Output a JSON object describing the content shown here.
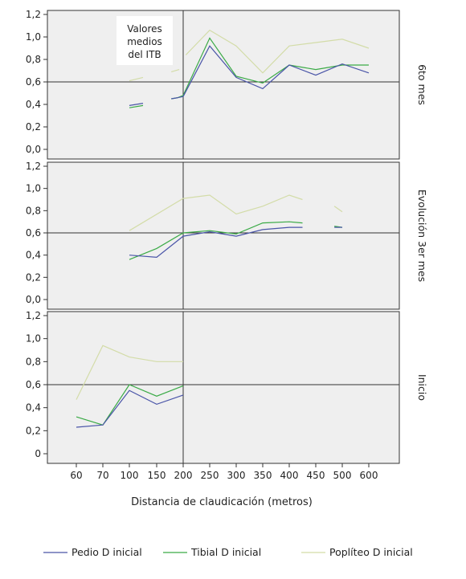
{
  "chart_data": {
    "type": "line",
    "xlabel": "Distancia de claudicación (metros)",
    "x_categories": [
      "60",
      "70",
      "100",
      "150",
      "200",
      "250",
      "300",
      "350",
      "400",
      "450",
      "500",
      "600"
    ],
    "y_ticks": [
      "1,2",
      "1,0",
      "0,8",
      "0,6",
      "0,4",
      "0,2",
      "0,0"
    ],
    "y_ticks_bottom": [
      "1,2",
      "1,0",
      "0,8",
      "0,6",
      "0,4",
      "0,2",
      "0"
    ],
    "ylim": [
      0,
      1.2
    ],
    "reference_line_y": 0.6,
    "reference_line_x": "200",
    "annotation": [
      "Valores",
      "medios",
      "del ITB"
    ],
    "legend_position": "bottom",
    "series_legend": [
      {
        "name": "Pedio D inicial",
        "color": "#4a55a8"
      },
      {
        "name": "Tibial D inicial",
        "color": "#3aaa46"
      },
      {
        "name": "Poplíteo D inicial",
        "color": "#d3dca8"
      }
    ],
    "panels": [
      {
        "label": "6to mes",
        "series": [
          {
            "name": "Pedio D inicial",
            "segments": [
              [
                [
                  2,
                  0.39
                ],
                [
                  2.5,
                  0.41
                ]
              ],
              [
                [
                  3.55,
                  0.45
                ],
                [
                  3.8,
                  0.46
                ]
              ],
              [
                [
                  3.8,
                  0.46
                ],
                [
                  4,
                  0.47
                ],
                [
                  5,
                  0.92
                ],
                [
                  6,
                  0.64
                ],
                [
                  7,
                  0.54
                ],
                [
                  8,
                  0.75
                ],
                [
                  9,
                  0.66
                ],
                [
                  10,
                  0.76
                ],
                [
                  11,
                  0.68
                ]
              ]
            ]
          },
          {
            "name": "Tibial D inicial",
            "segments": [
              [
                [
                  2,
                  0.37
                ],
                [
                  2.5,
                  0.39
                ]
              ],
              [
                [
                  3.55,
                  0.45
                ],
                [
                  3.8,
                  0.46
                ]
              ],
              [
                [
                  3.8,
                  0.46
                ],
                [
                  4,
                  0.48
                ],
                [
                  5,
                  0.99
                ],
                [
                  6,
                  0.65
                ],
                [
                  7,
                  0.59
                ],
                [
                  8,
                  0.75
                ],
                [
                  9,
                  0.71
                ],
                [
                  10,
                  0.75
                ],
                [
                  11,
                  0.75
                ]
              ]
            ]
          },
          {
            "name": "Poplíteo D inicial",
            "segments": [
              [
                [
                  2,
                  0.61
                ],
                [
                  2.5,
                  0.64
                ]
              ],
              [
                [
                  3.55,
                  0.69
                ],
                [
                  3.85,
                  0.71
                ]
              ],
              [
                [
                  4.1,
                  0.84
                ],
                [
                  5,
                  1.06
                ],
                [
                  6,
                  0.92
                ],
                [
                  7,
                  0.68
                ],
                [
                  8,
                  0.92
                ],
                [
                  9,
                  0.95
                ],
                [
                  10,
                  0.98
                ],
                [
                  11,
                  0.9
                ]
              ]
            ]
          }
        ]
      },
      {
        "label": "Evolución 3er mes",
        "series": [
          {
            "name": "Pedio D inicial",
            "segments": [
              [
                [
                  2,
                  0.4
                ],
                [
                  3,
                  0.38
                ],
                [
                  4,
                  0.57
                ],
                [
                  5,
                  0.61
                ],
                [
                  6,
                  0.57
                ],
                [
                  7,
                  0.63
                ],
                [
                  8,
                  0.65
                ],
                [
                  8.5,
                  0.65
                ]
              ],
              [
                [
                  9.7,
                  0.65
                ],
                [
                  10,
                  0.65
                ]
              ]
            ]
          },
          {
            "name": "Tibial D inicial",
            "segments": [
              [
                [
                  2,
                  0.36
                ],
                [
                  3,
                  0.46
                ],
                [
                  4,
                  0.6
                ],
                [
                  5,
                  0.62
                ],
                [
                  6,
                  0.59
                ],
                [
                  7,
                  0.69
                ],
                [
                  8,
                  0.7
                ],
                [
                  8.5,
                  0.69
                ]
              ],
              [
                [
                  9.7,
                  0.66
                ],
                [
                  10,
                  0.65
                ]
              ]
            ]
          },
          {
            "name": "Poplíteo D inicial",
            "segments": [
              [
                [
                  2,
                  0.62
                ],
                [
                  4,
                  0.91
                ],
                [
                  5,
                  0.94
                ],
                [
                  6,
                  0.77
                ],
                [
                  7,
                  0.84
                ],
                [
                  8,
                  0.94
                ],
                [
                  8.5,
                  0.9
                ]
              ],
              [
                [
                  9.7,
                  0.84
                ],
                [
                  10,
                  0.79
                ]
              ]
            ]
          }
        ]
      },
      {
        "label": "Inicio",
        "series": [
          {
            "name": "Pedio D inicial",
            "segments": [
              [
                [
                  0,
                  0.23
                ],
                [
                  1,
                  0.25
                ],
                [
                  2,
                  0.55
                ],
                [
                  3,
                  0.43
                ],
                [
                  4,
                  0.51
                ]
              ]
            ]
          },
          {
            "name": "Tibial D inicial",
            "segments": [
              [
                [
                  0,
                  0.32
                ],
                [
                  1,
                  0.25
                ],
                [
                  2,
                  0.6
                ],
                [
                  3,
                  0.5
                ],
                [
                  4,
                  0.59
                ]
              ]
            ]
          },
          {
            "name": "Poplíteo D inicial",
            "segments": [
              [
                [
                  0,
                  0.47
                ],
                [
                  1,
                  0.94
                ],
                [
                  2,
                  0.84
                ],
                [
                  3,
                  0.8
                ],
                [
                  4,
                  0.8
                ]
              ]
            ]
          }
        ]
      }
    ]
  }
}
